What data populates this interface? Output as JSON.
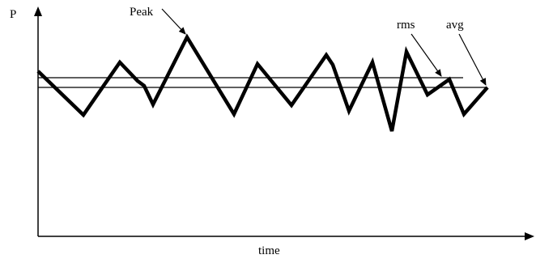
{
  "labels": {
    "y_axis": "P",
    "x_axis": "time",
    "peak": "Peak",
    "rms": "rms",
    "avg": "avg"
  },
  "colors": {
    "ink": "#000000",
    "background": "#ffffff"
  }
}
